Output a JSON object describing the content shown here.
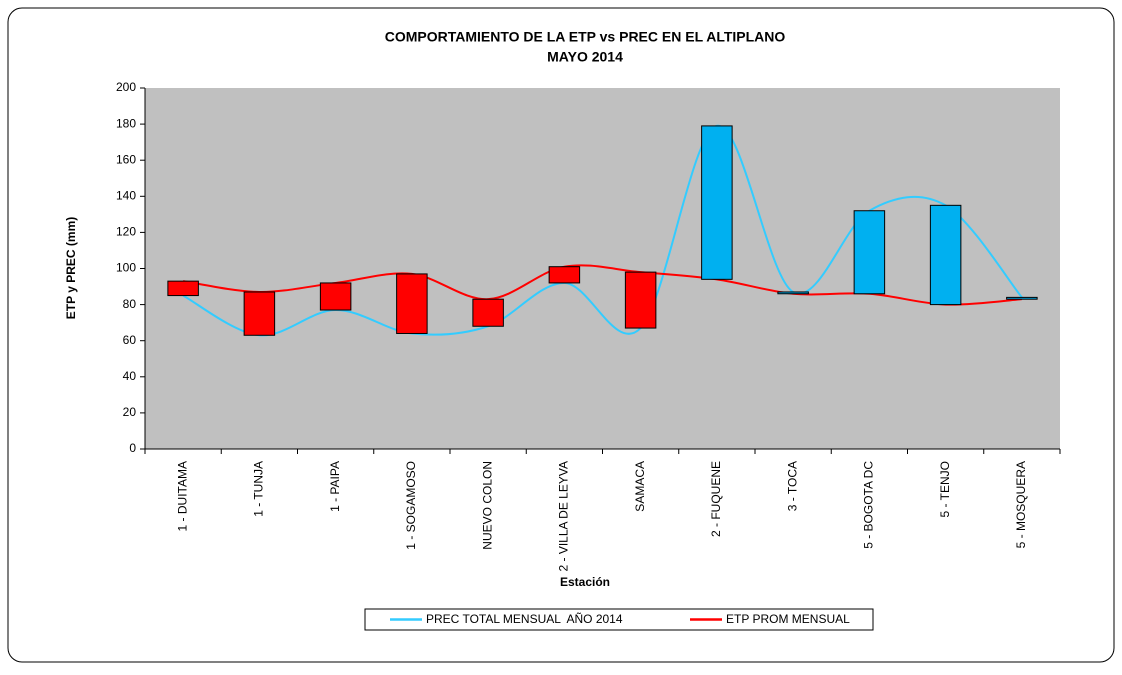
{
  "chart_data": {
    "type": "line",
    "title": "COMPORTAMIENTO DE LA ETP vs PREC EN EL ALTIPLANO",
    "subtitle": "MAYO 2014",
    "x_label": "Estación",
    "y_label": "ETP y PREC (mm)",
    "categories": [
      "1 - DUITAMA",
      "1 - TUNJA",
      "1 - PAIPA",
      "1 - SOGAMOSO",
      "NUEVO COLON",
      "2 - VILLA DE LEYVA",
      "SAMACA",
      "2 - FUQUENE",
      "3 - TOCA",
      "5 - BOGOTA DC",
      "5 - TENJO",
      "5 - MOSQUERA"
    ],
    "series": [
      {
        "name": "PREC TOTAL MENSUAL  AÑO 2014",
        "color": "#33ccff",
        "values": [
          85,
          63,
          77,
          64,
          68,
          92,
          67,
          179,
          87,
          132,
          135,
          84
        ]
      },
      {
        "name": "ETP PROM MENSUAL",
        "color": "#ff0000",
        "values": [
          93,
          87,
          92,
          97,
          83,
          101,
          98,
          94,
          86,
          86,
          80,
          83
        ]
      }
    ],
    "up_bar_color": "#00b0f0",
    "down_bar_color": "#ff0000",
    "smooth": true,
    "ylim": [
      0,
      200
    ],
    "yticks": [
      0,
      20,
      40,
      60,
      80,
      100,
      120,
      140,
      160,
      180,
      200
    ],
    "plot_background": "#c0c0c0",
    "legend": "bottom"
  }
}
